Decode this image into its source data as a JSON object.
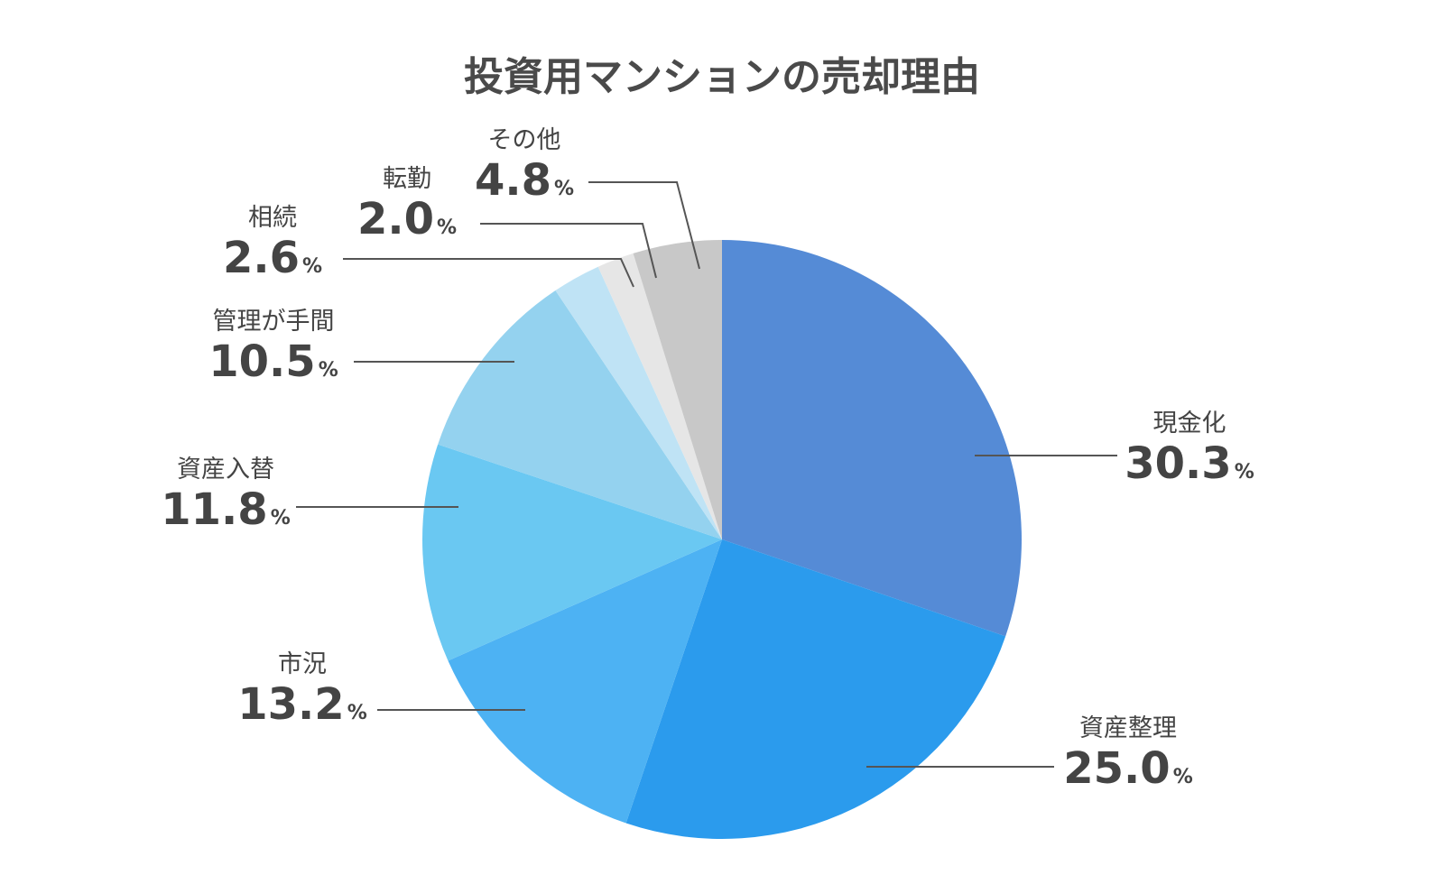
{
  "chart_data": {
    "type": "pie",
    "title": "投資用マンションの売却理由",
    "unit": "%",
    "slices": [
      {
        "label": "現金化",
        "value": 30.3,
        "color": "#558bd6"
      },
      {
        "label": "資産整理",
        "value": 25.0,
        "color": "#2b9bed"
      },
      {
        "label": "市況",
        "value": 13.2,
        "color": "#4db2f3"
      },
      {
        "label": "資産入替",
        "value": 11.8,
        "color": "#6ac8f2"
      },
      {
        "label": "管理が手間",
        "value": 10.5,
        "color": "#94d2ef"
      },
      {
        "label": "相続",
        "value": 2.6,
        "color": "#bfe3f5"
      },
      {
        "label": "転勤",
        "value": 2.0,
        "color": "#e6e6e6"
      },
      {
        "label": "その他",
        "value": 4.8,
        "color": "#c8c8c8"
      }
    ]
  }
}
